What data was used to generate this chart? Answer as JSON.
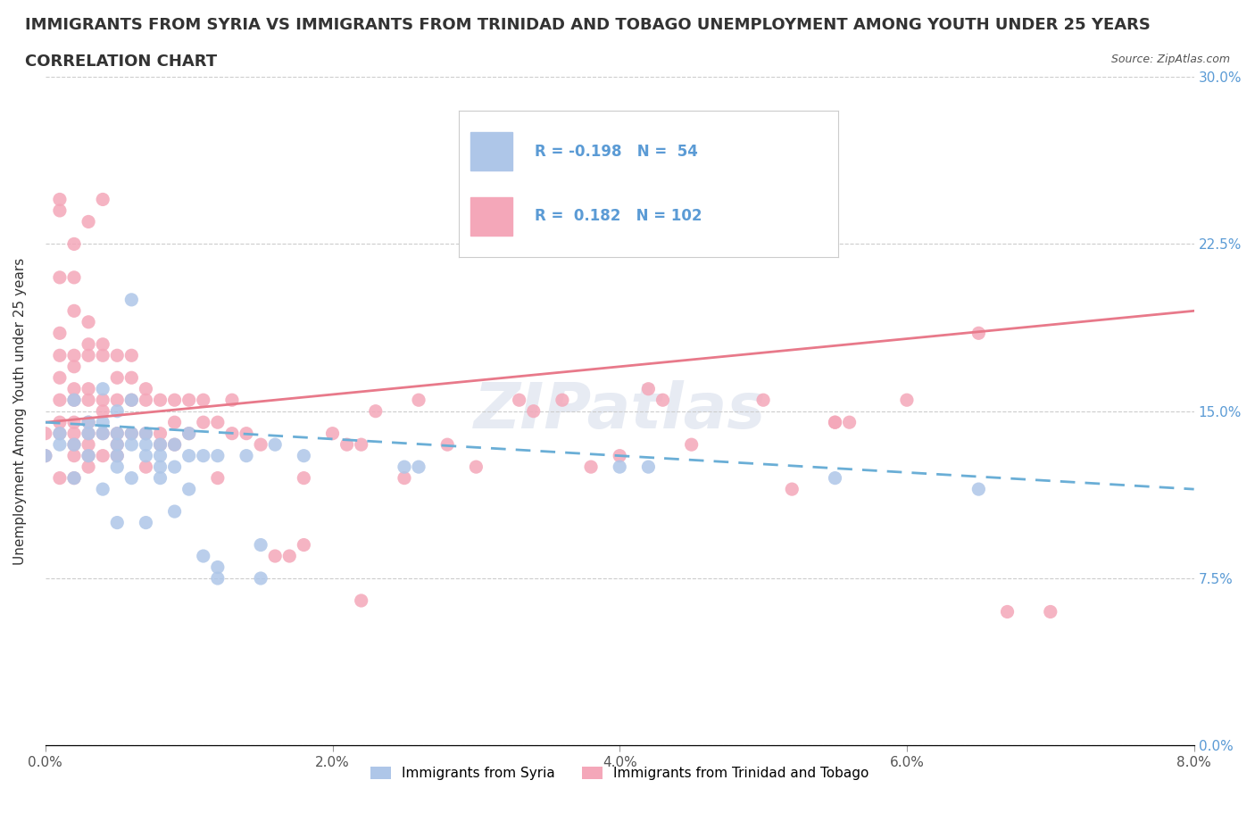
{
  "title_line1": "IMMIGRANTS FROM SYRIA VS IMMIGRANTS FROM TRINIDAD AND TOBAGO UNEMPLOYMENT AMONG YOUTH UNDER 25 YEARS",
  "title_line2": "CORRELATION CHART",
  "source_text": "Source: ZipAtlas.com",
  "ylabel": "Unemployment Among Youth under 25 years",
  "x_tick_labels": [
    "0.0%",
    "2.0%",
    "4.0%",
    "6.0%",
    "8.0%"
  ],
  "y_tick_labels": [
    "0.0%",
    "7.5%",
    "15.0%",
    "22.5%",
    "30.0%"
  ],
  "xlim": [
    0.0,
    0.08
  ],
  "ylim": [
    0.0,
    0.3
  ],
  "legend_r1": "R = -0.198",
  "legend_n1": "N =  54",
  "legend_r2": "R =  0.182",
  "legend_n2": "N = 102",
  "legend_label1": "Immigrants from Syria",
  "legend_label2": "Immigrants from Trinidad and Tobago",
  "watermark": "ZIPatlas",
  "syria_color": "#aec6e8",
  "tt_color": "#f4a7b9",
  "syria_line_color": "#6aaed6",
  "tt_line_color": "#e8798a",
  "syria_scatter": [
    [
      0.0,
      0.13
    ],
    [
      0.001,
      0.14
    ],
    [
      0.001,
      0.135
    ],
    [
      0.002,
      0.12
    ],
    [
      0.002,
      0.155
    ],
    [
      0.002,
      0.135
    ],
    [
      0.003,
      0.13
    ],
    [
      0.003,
      0.14
    ],
    [
      0.003,
      0.145
    ],
    [
      0.004,
      0.115
    ],
    [
      0.004,
      0.14
    ],
    [
      0.004,
      0.145
    ],
    [
      0.004,
      0.16
    ],
    [
      0.005,
      0.1
    ],
    [
      0.005,
      0.125
    ],
    [
      0.005,
      0.13
    ],
    [
      0.005,
      0.135
    ],
    [
      0.005,
      0.14
    ],
    [
      0.005,
      0.15
    ],
    [
      0.006,
      0.12
    ],
    [
      0.006,
      0.135
    ],
    [
      0.006,
      0.14
    ],
    [
      0.006,
      0.155
    ],
    [
      0.006,
      0.2
    ],
    [
      0.007,
      0.1
    ],
    [
      0.007,
      0.13
    ],
    [
      0.007,
      0.135
    ],
    [
      0.007,
      0.14
    ],
    [
      0.008,
      0.12
    ],
    [
      0.008,
      0.125
    ],
    [
      0.008,
      0.13
    ],
    [
      0.008,
      0.135
    ],
    [
      0.009,
      0.105
    ],
    [
      0.009,
      0.125
    ],
    [
      0.009,
      0.135
    ],
    [
      0.01,
      0.115
    ],
    [
      0.01,
      0.13
    ],
    [
      0.01,
      0.14
    ],
    [
      0.011,
      0.085
    ],
    [
      0.011,
      0.13
    ],
    [
      0.012,
      0.075
    ],
    [
      0.012,
      0.08
    ],
    [
      0.012,
      0.13
    ],
    [
      0.014,
      0.13
    ],
    [
      0.015,
      0.075
    ],
    [
      0.015,
      0.09
    ],
    [
      0.016,
      0.135
    ],
    [
      0.018,
      0.13
    ],
    [
      0.025,
      0.125
    ],
    [
      0.026,
      0.125
    ],
    [
      0.04,
      0.125
    ],
    [
      0.042,
      0.125
    ],
    [
      0.055,
      0.12
    ],
    [
      0.065,
      0.115
    ]
  ],
  "tt_scatter": [
    [
      0.0,
      0.13
    ],
    [
      0.0,
      0.14
    ],
    [
      0.001,
      0.12
    ],
    [
      0.001,
      0.14
    ],
    [
      0.001,
      0.145
    ],
    [
      0.001,
      0.155
    ],
    [
      0.001,
      0.165
    ],
    [
      0.001,
      0.175
    ],
    [
      0.001,
      0.185
    ],
    [
      0.001,
      0.21
    ],
    [
      0.001,
      0.24
    ],
    [
      0.001,
      0.245
    ],
    [
      0.002,
      0.12
    ],
    [
      0.002,
      0.13
    ],
    [
      0.002,
      0.135
    ],
    [
      0.002,
      0.14
    ],
    [
      0.002,
      0.145
    ],
    [
      0.002,
      0.155
    ],
    [
      0.002,
      0.16
    ],
    [
      0.002,
      0.17
    ],
    [
      0.002,
      0.175
    ],
    [
      0.002,
      0.195
    ],
    [
      0.002,
      0.21
    ],
    [
      0.002,
      0.225
    ],
    [
      0.003,
      0.125
    ],
    [
      0.003,
      0.13
    ],
    [
      0.003,
      0.135
    ],
    [
      0.003,
      0.14
    ],
    [
      0.003,
      0.145
    ],
    [
      0.003,
      0.155
    ],
    [
      0.003,
      0.16
    ],
    [
      0.003,
      0.175
    ],
    [
      0.003,
      0.18
    ],
    [
      0.003,
      0.19
    ],
    [
      0.003,
      0.235
    ],
    [
      0.004,
      0.13
    ],
    [
      0.004,
      0.14
    ],
    [
      0.004,
      0.15
    ],
    [
      0.004,
      0.155
    ],
    [
      0.004,
      0.175
    ],
    [
      0.004,
      0.18
    ],
    [
      0.004,
      0.245
    ],
    [
      0.005,
      0.13
    ],
    [
      0.005,
      0.135
    ],
    [
      0.005,
      0.14
    ],
    [
      0.005,
      0.155
    ],
    [
      0.005,
      0.165
    ],
    [
      0.005,
      0.175
    ],
    [
      0.006,
      0.14
    ],
    [
      0.006,
      0.155
    ],
    [
      0.006,
      0.165
    ],
    [
      0.006,
      0.175
    ],
    [
      0.007,
      0.125
    ],
    [
      0.007,
      0.14
    ],
    [
      0.007,
      0.155
    ],
    [
      0.007,
      0.16
    ],
    [
      0.008,
      0.135
    ],
    [
      0.008,
      0.14
    ],
    [
      0.008,
      0.155
    ],
    [
      0.009,
      0.135
    ],
    [
      0.009,
      0.145
    ],
    [
      0.009,
      0.155
    ],
    [
      0.01,
      0.14
    ],
    [
      0.01,
      0.155
    ],
    [
      0.011,
      0.145
    ],
    [
      0.011,
      0.155
    ],
    [
      0.012,
      0.12
    ],
    [
      0.012,
      0.145
    ],
    [
      0.013,
      0.14
    ],
    [
      0.013,
      0.155
    ],
    [
      0.014,
      0.14
    ],
    [
      0.015,
      0.135
    ],
    [
      0.016,
      0.085
    ],
    [
      0.017,
      0.085
    ],
    [
      0.018,
      0.09
    ],
    [
      0.018,
      0.12
    ],
    [
      0.02,
      0.14
    ],
    [
      0.021,
      0.135
    ],
    [
      0.022,
      0.065
    ],
    [
      0.022,
      0.135
    ],
    [
      0.023,
      0.15
    ],
    [
      0.025,
      0.12
    ],
    [
      0.026,
      0.155
    ],
    [
      0.028,
      0.135
    ],
    [
      0.03,
      0.125
    ],
    [
      0.033,
      0.155
    ],
    [
      0.034,
      0.15
    ],
    [
      0.036,
      0.155
    ],
    [
      0.038,
      0.125
    ],
    [
      0.04,
      0.13
    ],
    [
      0.042,
      0.16
    ],
    [
      0.043,
      0.155
    ],
    [
      0.045,
      0.135
    ],
    [
      0.05,
      0.155
    ],
    [
      0.052,
      0.115
    ],
    [
      0.055,
      0.145
    ],
    [
      0.055,
      0.145
    ],
    [
      0.056,
      0.145
    ],
    [
      0.06,
      0.155
    ],
    [
      0.065,
      0.185
    ],
    [
      0.067,
      0.06
    ],
    [
      0.07,
      0.06
    ]
  ],
  "syria_trendline_x": [
    0.0,
    0.08
  ],
  "syria_trendline_y": [
    0.145,
    0.115
  ],
  "tt_trendline_x": [
    0.0,
    0.08
  ],
  "tt_trendline_y": [
    0.145,
    0.195
  ],
  "grid_color": "#cccccc",
  "background_color": "#ffffff",
  "title_fontsize": 13,
  "axis_label_fontsize": 11,
  "tick_fontsize": 11,
  "legend_text_color": "#5b9bd5",
  "right_tick_color": "#5b9bd5"
}
